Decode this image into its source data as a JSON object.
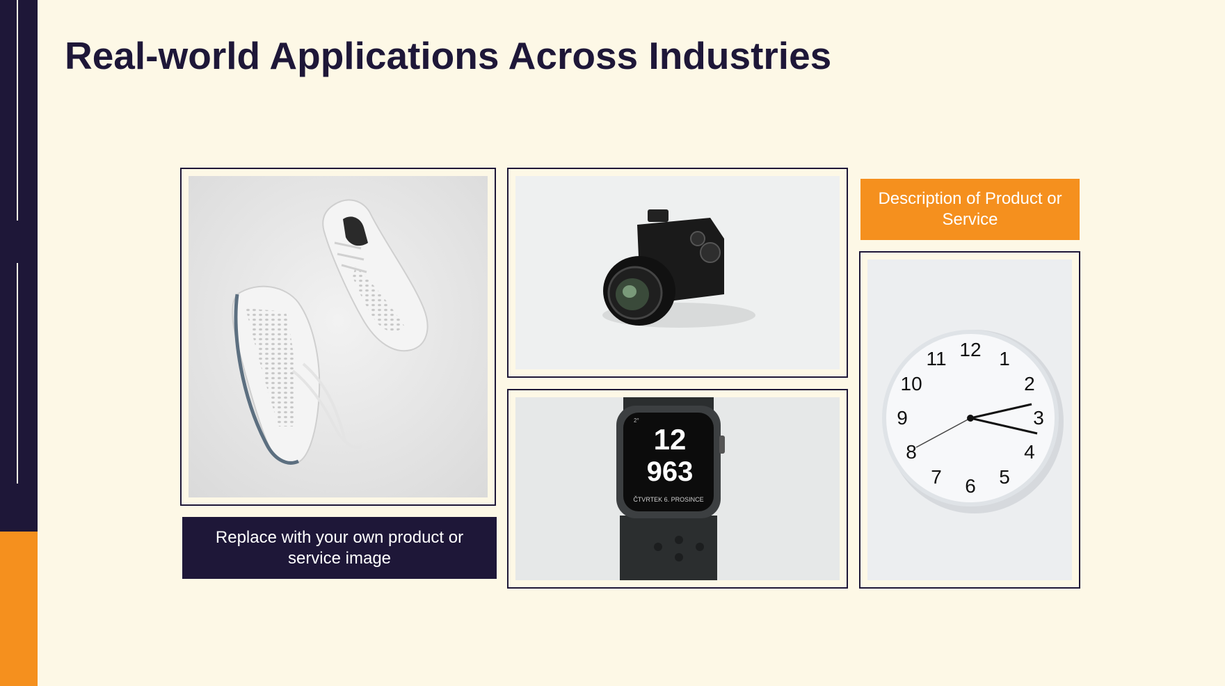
{
  "colors": {
    "background": "#fdf8e6",
    "navy": "#1e1738",
    "orange": "#f5901e"
  },
  "slide": {
    "title": "Real-world Applications Across Industries"
  },
  "images": [
    {
      "name": "sneakers-photo"
    },
    {
      "name": "camera-photo"
    },
    {
      "name": "smartwatch-photo",
      "watch_hours": "12",
      "watch_minutes": "963",
      "watch_date": "ČTVRTEK 6. PROSINCE",
      "watch_complication": "2°"
    },
    {
      "name": "wall-clock-photo",
      "dial_numbers": [
        "12",
        "1",
        "2",
        "3",
        "4",
        "5",
        "6",
        "7",
        "8",
        "9",
        "10",
        "11"
      ]
    }
  ],
  "captions": {
    "left": "Replace with your own product or service image",
    "right": "Description of Product or Service"
  }
}
